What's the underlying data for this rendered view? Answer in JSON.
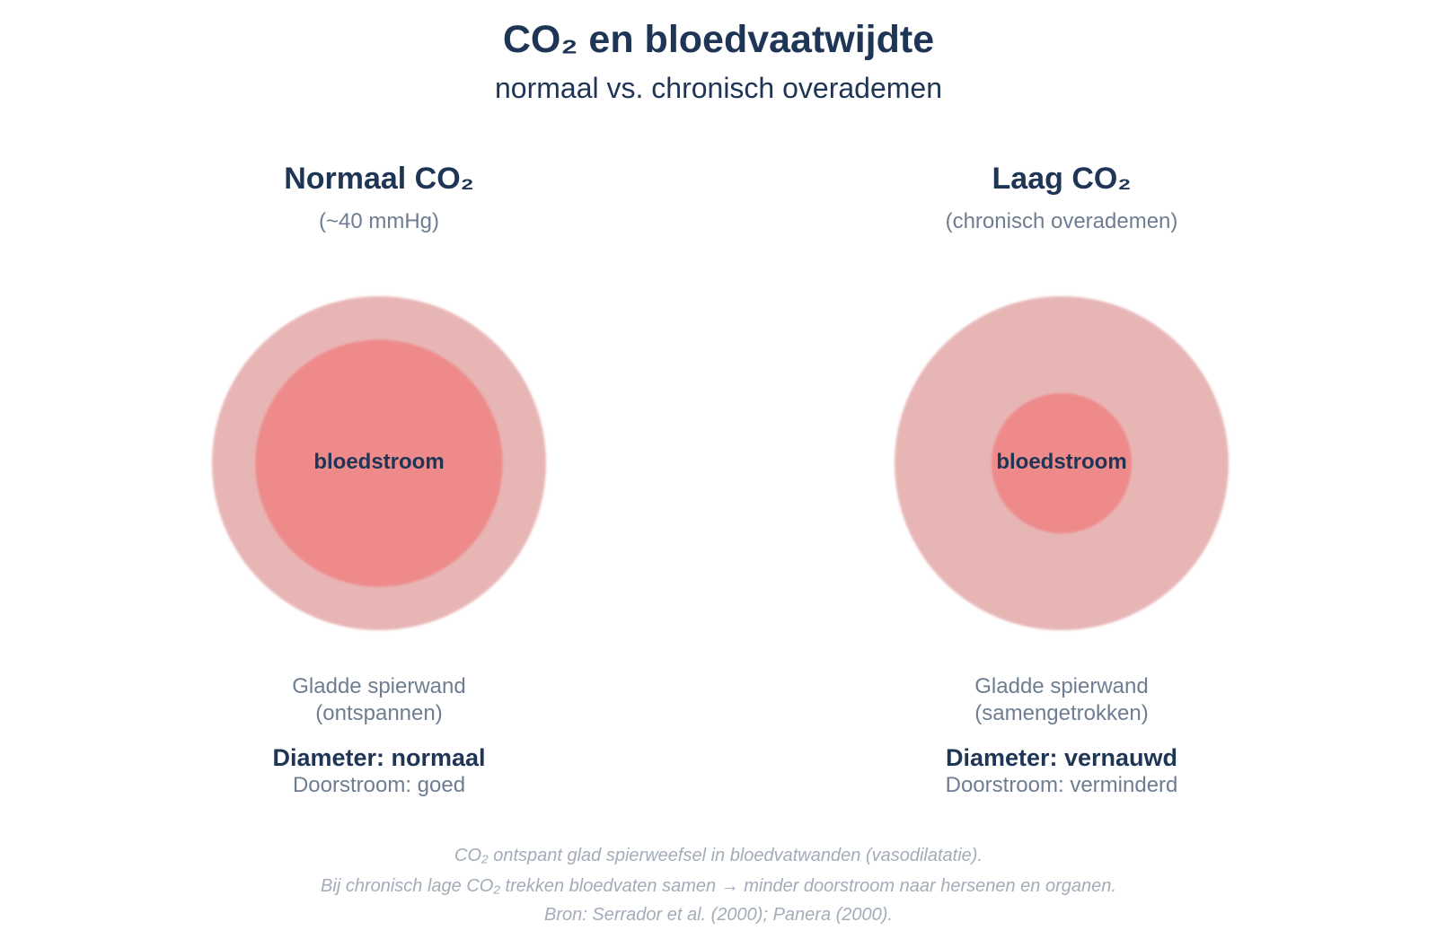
{
  "header": {
    "title": "CO₂ en bloedvaatwijdte",
    "subtitle": "normaal vs. chronisch overademen"
  },
  "panels": [
    {
      "heading": "Normaal CO₂",
      "subheading": "(~40 mmHg)",
      "lumen_label": "bloedstroom",
      "lumen_fraction": 0.74,
      "wall_label_line1": "Gladde spierwand",
      "wall_label_line2": "(ontspannen)",
      "diameter": "Diameter: normaal",
      "flow": "Doorstroom: goed"
    },
    {
      "heading": "Laag CO₂",
      "subheading": "(chronisch overademen)",
      "lumen_label": "bloedstroom",
      "lumen_fraction": 0.42,
      "wall_label_line1": "Gladde spierwand",
      "wall_label_line2": "(samengetrokken)",
      "diameter": "Diameter: vernauwd",
      "flow": "Doorstroom: verminderd"
    }
  ],
  "colors": {
    "wall": "#e8b5b5",
    "lumen": "#ee8a8a",
    "title": "#1e3556",
    "muted": "#6e7d92",
    "footnote": "#a3acb9"
  },
  "footnotes": {
    "line1": "CO₂ ontspant glad spierweefsel in bloedvatwanden (vasodilatatie).",
    "line2": "Bij chronisch lage CO₂ trekken bloedvaten samen → minder doorstroom naar hersenen en organen.",
    "line3": "Bron: Serrador et al. (2000); Panera (2000)."
  }
}
